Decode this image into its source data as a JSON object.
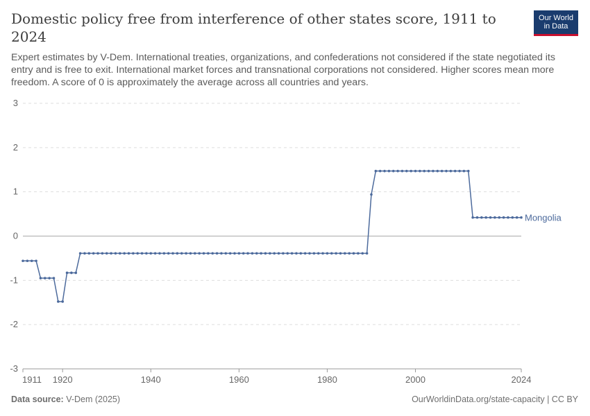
{
  "header": {
    "title": "Domestic policy free from interference of other states score, 1911 to 2024",
    "subtitle": "Expert estimates by V-Dem. International treaties, organizations, and confederations not considered if the state negotiated its entry and is free to exit. International market forces and transnational corporations not considered. Higher scores mean more freedom. A score of 0 is approximately the average across all countries and years.",
    "logo_line1": "Our World",
    "logo_line2": "in Data"
  },
  "footer": {
    "source_label": "Data source:",
    "source_value": "V-Dem (2025)",
    "url": "OurWorldinData.org/state-capacity | CC BY"
  },
  "colors": {
    "series": "#4c6a9c",
    "grid": "#dddddd",
    "zero_line": "#a9a9a9",
    "axis_text": "#666666",
    "logo_bg": "#1a3c6e",
    "logo_accent": "#c8102e"
  },
  "chart_data": {
    "type": "line",
    "title": "Domestic policy free from interference of other states score, 1911 to 2024",
    "xlabel": "",
    "ylabel": "",
    "xlim": [
      1911,
      2024
    ],
    "ylim": [
      -3,
      3
    ],
    "yticks": [
      3,
      2,
      1,
      0,
      -1,
      -2,
      -3
    ],
    "xticks": [
      1911,
      1920,
      1940,
      1960,
      1980,
      2000,
      2024
    ],
    "grid": "horizontal dashed",
    "series": [
      {
        "name": "Mongolia",
        "segments": [
          {
            "from": 1911,
            "to": 1914,
            "value": -0.56
          },
          {
            "from": 1915,
            "to": 1918,
            "value": -0.95
          },
          {
            "from": 1919,
            "to": 1920,
            "value": -1.48
          },
          {
            "from": 1921,
            "to": 1923,
            "value": -0.83
          },
          {
            "from": 1924,
            "to": 1989,
            "value": -0.39
          },
          {
            "from": 1990,
            "to": 1990,
            "value": 0.94
          },
          {
            "from": 1991,
            "to": 2012,
            "value": 1.47
          },
          {
            "from": 2013,
            "to": 2024,
            "value": 0.42
          }
        ]
      }
    ]
  }
}
